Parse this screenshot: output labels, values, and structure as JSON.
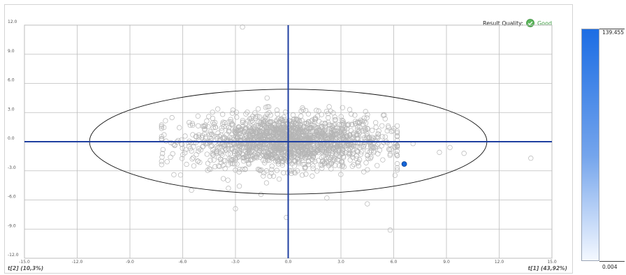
{
  "quality": {
    "label": "Result Quality:",
    "value": "Good",
    "icon": "check-circle-icon",
    "color": "#43a047"
  },
  "colors": {
    "axis": "#1f3fa0",
    "grid": "#bdbdbd",
    "point_stroke": "#b5b5b5",
    "highlight": "#1565d8"
  },
  "chart_data": {
    "type": "scatter",
    "title": "",
    "xlabel": "t[1] (43,92%)",
    "ylabel": "t[2] (10,3%)",
    "xlim": [
      -15.0,
      15.0
    ],
    "ylim": [
      -12.0,
      12.0
    ],
    "xticks": [
      "-15.0",
      "-12.0",
      "-9.0",
      "-6.0",
      "-3.0",
      "0.0",
      "3.0",
      "6.0",
      "9.0",
      "12.0",
      "15.0"
    ],
    "yticks": [
      "12.0",
      "9.0",
      "6.0",
      "3.0",
      "0.0",
      "-3.0",
      "-6.0",
      "-9.0",
      "-12.0"
    ],
    "grid": true,
    "ellipse": {
      "center": [
        0,
        0
      ],
      "rx": 11.3,
      "ry": 5.4
    },
    "highlight_point": {
      "x": 6.6,
      "y": -2.3
    },
    "outliers": [
      {
        "x": -2.6,
        "y": 11.8
      },
      {
        "x": 13.8,
        "y": -1.7
      },
      {
        "x": 10.0,
        "y": -1.2
      },
      {
        "x": 8.6,
        "y": -1.1
      },
      {
        "x": 5.8,
        "y": -9.1
      },
      {
        "x": -0.1,
        "y": -7.8
      },
      {
        "x": -3.4,
        "y": -4.8
      },
      {
        "x": 4.5,
        "y": -6.4
      },
      {
        "x": -6.5,
        "y": -3.4
      },
      {
        "x": 7.1,
        "y": -0.2
      },
      {
        "x": 9.2,
        "y": -0.6
      },
      {
        "x": -1.2,
        "y": 4.5
      },
      {
        "x": 3.5,
        "y": 3.3
      },
      {
        "x": -3.0,
        "y": -6.9
      },
      {
        "x": 1.0,
        "y": 3.2
      },
      {
        "x": 4.3,
        "y": -3.1
      },
      {
        "x": -5.5,
        "y": -5.0
      },
      {
        "x": 2.2,
        "y": -5.8
      }
    ],
    "cloud": {
      "count": 1800,
      "x_sd": 2.7,
      "y_sd": 1.35,
      "x_range": [
        -7.2,
        6.2
      ],
      "y_range": [
        -6.0,
        3.6
      ]
    },
    "color_scale": {
      "max": "139.455",
      "min": "0.004",
      "top_color": "#1c6de4",
      "bottom_color": "#f4f8ff"
    }
  }
}
